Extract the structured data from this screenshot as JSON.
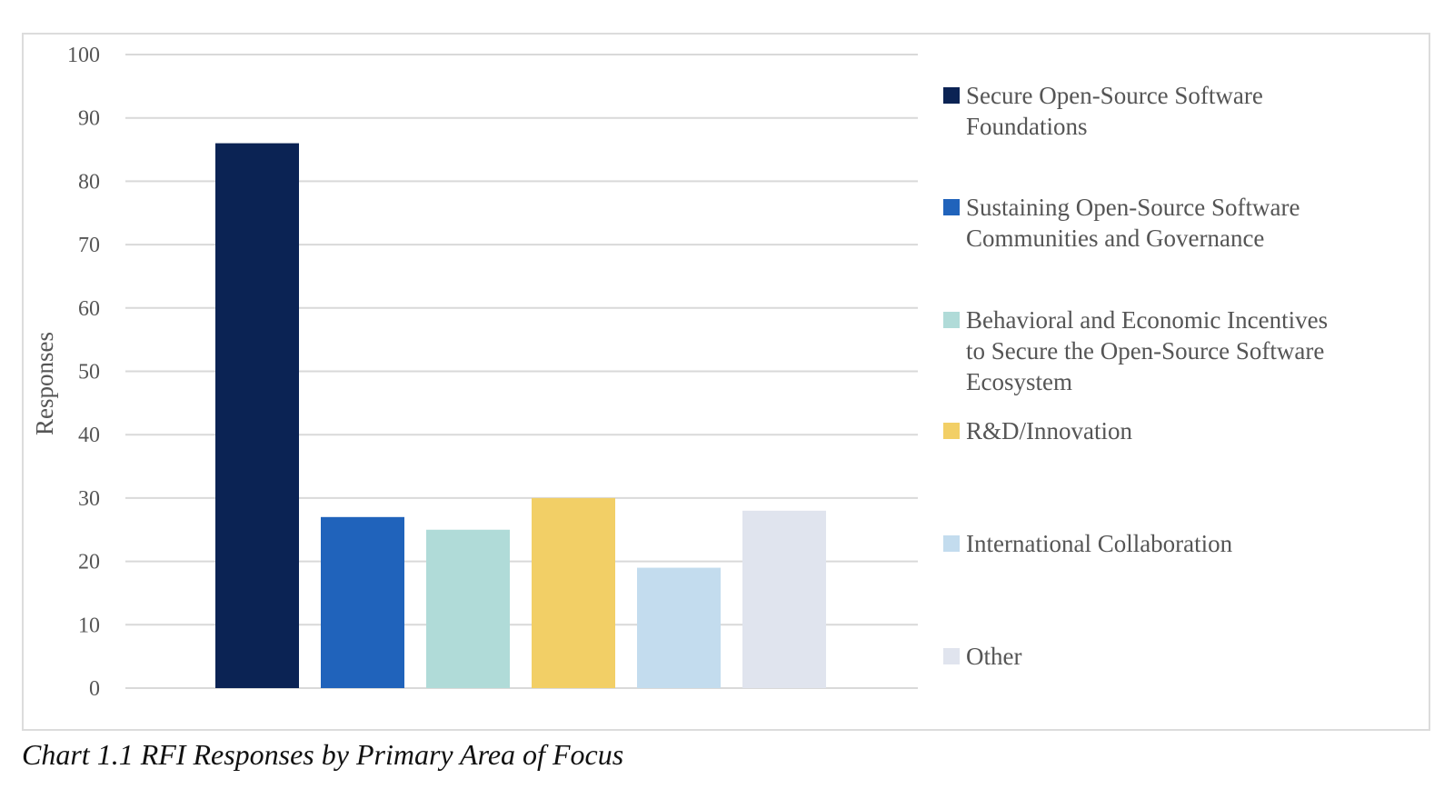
{
  "caption": "Chart 1.1 RFI Responses by Primary Area of Focus",
  "chart_data": {
    "type": "bar",
    "title": "",
    "xlabel": "",
    "ylabel": "Responses",
    "ylim": [
      0,
      100
    ],
    "yticks": [
      0,
      10,
      20,
      30,
      40,
      50,
      60,
      70,
      80,
      90,
      100
    ],
    "grid": true,
    "legend_position": "right",
    "categories": [
      "Secure Open-Source Software Foundations",
      "Sustaining Open-Source Software Communities and Governance",
      "Behavioral and Economic Incentives to Secure the Open-Source Software Ecosystem",
      "R&D/Innovation",
      "International Collaboration",
      "Other"
    ],
    "values": [
      86,
      27,
      25,
      30,
      19,
      28
    ],
    "colors": [
      "#0b2354",
      "#2063bb",
      "#b0dbd8",
      "#f2cf66",
      "#c3dcee",
      "#e0e4ee"
    ],
    "legend": [
      {
        "lines": [
          "Secure Open-Source Software",
          "Foundations"
        ]
      },
      {
        "lines": [
          "Sustaining Open-Source Software",
          "Communities and Governance"
        ]
      },
      {
        "lines": [
          "Behavioral and Economic Incentives",
          "to Secure the Open-Source Software",
          "Ecosystem"
        ]
      },
      {
        "lines": [
          "R&D/Innovation"
        ]
      },
      {
        "lines": [
          "International Collaboration"
        ]
      },
      {
        "lines": [
          "Other"
        ]
      }
    ]
  }
}
